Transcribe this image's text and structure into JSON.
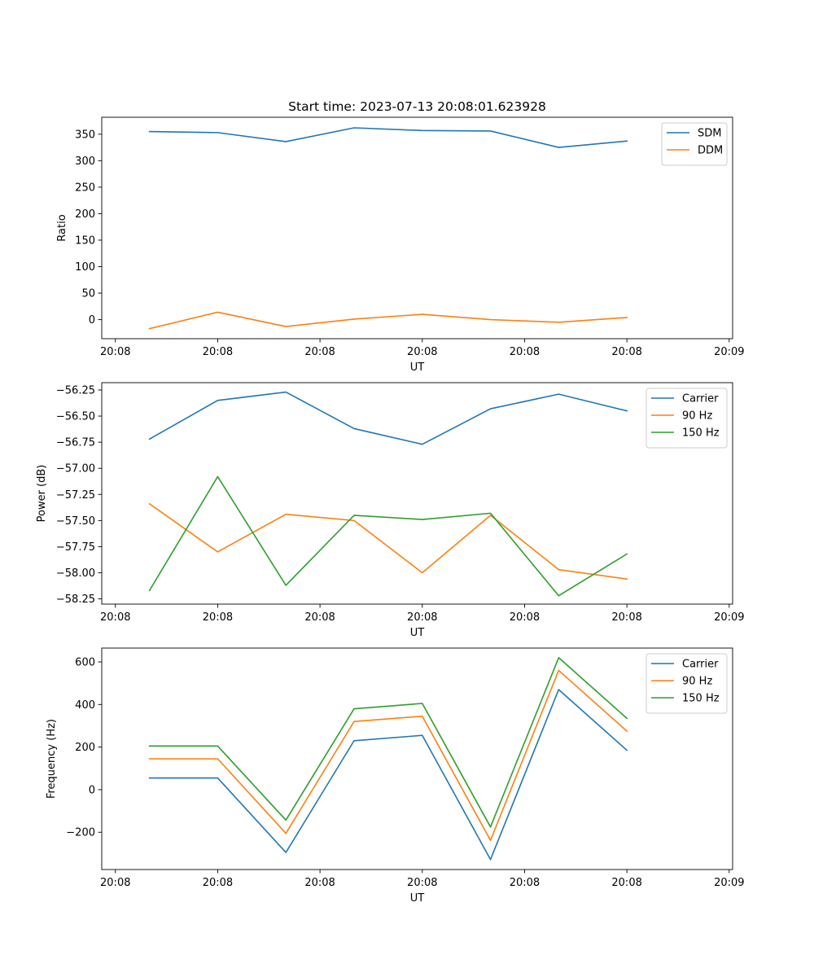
{
  "figure_title": "Start time: 2023-07-13 20:08:01.623928",
  "colors": {
    "series_blue": "#1f77b4",
    "series_orange": "#ff7f0e",
    "series_green": "#2ca02c",
    "axes": "#000000",
    "background": "#ffffff",
    "legend_border": "#cccccc"
  },
  "chart_data": [
    {
      "type": "line",
      "title": "Start time: 2023-07-13 20:08:01.623928",
      "xlabel": "UT",
      "ylabel": "Ratio",
      "x": [
        1,
        2,
        3,
        4,
        5,
        6,
        7,
        8
      ],
      "xlim": [
        0.3,
        9.55
      ],
      "xticks": [
        0.5,
        2,
        3.5,
        5,
        6.5,
        8,
        9.5
      ],
      "xtick_labels": [
        "20:08",
        "20:08",
        "20:08",
        "20:08",
        "20:08",
        "20:08",
        "20:09"
      ],
      "ylim": [
        -36,
        382
      ],
      "yticks": [
        0,
        50,
        100,
        150,
        200,
        250,
        300,
        350
      ],
      "ytick_labels": [
        "0",
        "50",
        "100",
        "150",
        "200",
        "250",
        "300",
        "350"
      ],
      "legend_position": "top-right",
      "series": [
        {
          "name": "SDM",
          "color": "#1f77b4",
          "values": [
            355,
            353,
            336,
            362,
            357,
            356,
            325,
            337
          ]
        },
        {
          "name": "DDM",
          "color": "#ff7f0e",
          "values": [
            -17,
            14,
            -13,
            1,
            10,
            0,
            -5,
            4
          ]
        }
      ]
    },
    {
      "type": "line",
      "title": "",
      "xlabel": "UT",
      "ylabel": "Power (dB)",
      "x": [
        1,
        2,
        3,
        4,
        5,
        6,
        7,
        8
      ],
      "xlim": [
        0.3,
        9.55
      ],
      "xticks": [
        0.5,
        2,
        3.5,
        5,
        6.5,
        8,
        9.5
      ],
      "xtick_labels": [
        "20:08",
        "20:08",
        "20:08",
        "20:08",
        "20:08",
        "20:08",
        "20:09"
      ],
      "ylim": [
        -58.3,
        -56.18
      ],
      "yticks": [
        -58.25,
        -58.0,
        -57.75,
        -57.5,
        -57.25,
        -57.0,
        -56.75,
        -56.5,
        -56.25
      ],
      "ytick_labels": [
        "−58.25",
        "−58.00",
        "−57.75",
        "−57.50",
        "−57.25",
        "−57.00",
        "−56.75",
        "−56.50",
        "−56.25"
      ],
      "legend_position": "top-right",
      "series": [
        {
          "name": "Carrier",
          "color": "#1f77b4",
          "values": [
            -56.72,
            -56.35,
            -56.27,
            -56.62,
            -56.77,
            -56.43,
            -56.29,
            -56.45
          ]
        },
        {
          "name": "90 Hz",
          "color": "#ff7f0e",
          "values": [
            -57.34,
            -57.8,
            -57.44,
            -57.5,
            -58.0,
            -57.45,
            -57.97,
            -58.06
          ]
        },
        {
          "name": "150 Hz",
          "color": "#2ca02c",
          "values": [
            -58.17,
            -57.08,
            -58.12,
            -57.45,
            -57.49,
            -57.43,
            -58.22,
            -57.82
          ]
        }
      ]
    },
    {
      "type": "line",
      "title": "",
      "xlabel": "UT",
      "ylabel": "Frequency (Hz)",
      "x": [
        1,
        2,
        3,
        4,
        5,
        6,
        7,
        8
      ],
      "xlim": [
        0.3,
        9.55
      ],
      "xticks": [
        0.5,
        2,
        3.5,
        5,
        6.5,
        8,
        9.5
      ],
      "xtick_labels": [
        "20:08",
        "20:08",
        "20:08",
        "20:08",
        "20:08",
        "20:08",
        "20:09"
      ],
      "ylim": [
        -375,
        665
      ],
      "yticks": [
        -200,
        0,
        200,
        400,
        600
      ],
      "ytick_labels": [
        "−200",
        "0",
        "200",
        "400",
        "600"
      ],
      "legend_position": "top-right",
      "series": [
        {
          "name": "Carrier",
          "color": "#1f77b4",
          "values": [
            55,
            55,
            -295,
            230,
            255,
            -328,
            470,
            185
          ]
        },
        {
          "name": "90 Hz",
          "color": "#ff7f0e",
          "values": [
            145,
            145,
            -205,
            320,
            345,
            -238,
            560,
            275
          ]
        },
        {
          "name": "150 Hz",
          "color": "#2ca02c",
          "values": [
            205,
            205,
            -143,
            380,
            405,
            -175,
            620,
            335
          ]
        }
      ]
    }
  ]
}
